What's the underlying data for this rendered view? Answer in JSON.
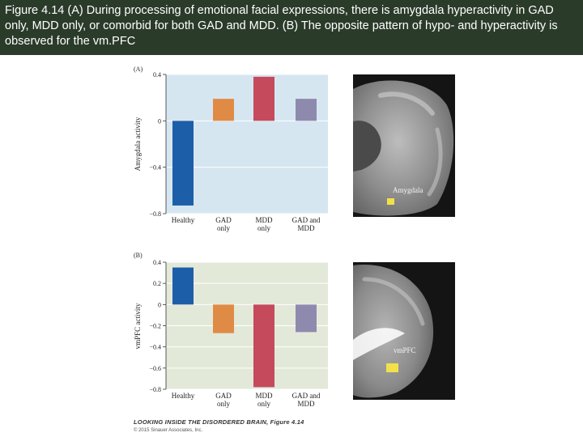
{
  "caption": "Figure 4.14 (A) During processing of emotional facial expressions, there is amygdala hyperactivity in GAD only, MDD only, or comorbid for both GAD and MDD. (B) The opposite pattern of hypo- and hyperactivity is observed for the vm.PFC",
  "footer": {
    "title": "LOOKING INSIDE THE DISORDERED BRAIN, Figure 4.14",
    "copyright": "© 2015 Sinauer Associates, Inc."
  },
  "colors": {
    "caption_bg": "#2b3b2a",
    "panel_a_bg": "#d5e6f1",
    "panel_b_bg": "#e3e9d9",
    "healthy": "#1d5ea8",
    "gad": "#e08b45",
    "mdd": "#c44a5c",
    "gad_mdd": "#8e8aae"
  },
  "chart_data": [
    {
      "type": "bar",
      "panel_label": "(A)",
      "categories": [
        [
          "Healthy"
        ],
        [
          "GAD",
          "only"
        ],
        [
          "MDD",
          "only"
        ],
        [
          "GAD and",
          "MDD"
        ]
      ],
      "values": [
        -0.73,
        0.19,
        0.38,
        0.19
      ],
      "ylabel": "Amygdala activity",
      "ylim": [
        -0.8,
        0.4
      ],
      "yticks": [
        0.4,
        0,
        -0.4,
        -0.8
      ],
      "ytick_labels": [
        "0.4",
        "0",
        "−0.4",
        "−0.8"
      ],
      "grid": true,
      "image_label": "Amygdala"
    },
    {
      "type": "bar",
      "panel_label": "(B)",
      "categories": [
        [
          "Healthy"
        ],
        [
          "GAD",
          "only"
        ],
        [
          "MDD",
          "only"
        ],
        [
          "GAD and",
          "MDD"
        ]
      ],
      "values": [
        0.35,
        -0.27,
        -0.78,
        -0.26
      ],
      "ylabel": "vmPFC activity",
      "ylim": [
        -0.8,
        0.4
      ],
      "yticks": [
        0.4,
        0.2,
        0,
        -0.2,
        -0.4,
        -0.6,
        -0.8
      ],
      "ytick_labels": [
        "0.4",
        "0.2",
        "0",
        "−0.2",
        "−0.4",
        "−0.6",
        "−0.8"
      ],
      "grid": true,
      "image_label": "vmPFC"
    }
  ]
}
